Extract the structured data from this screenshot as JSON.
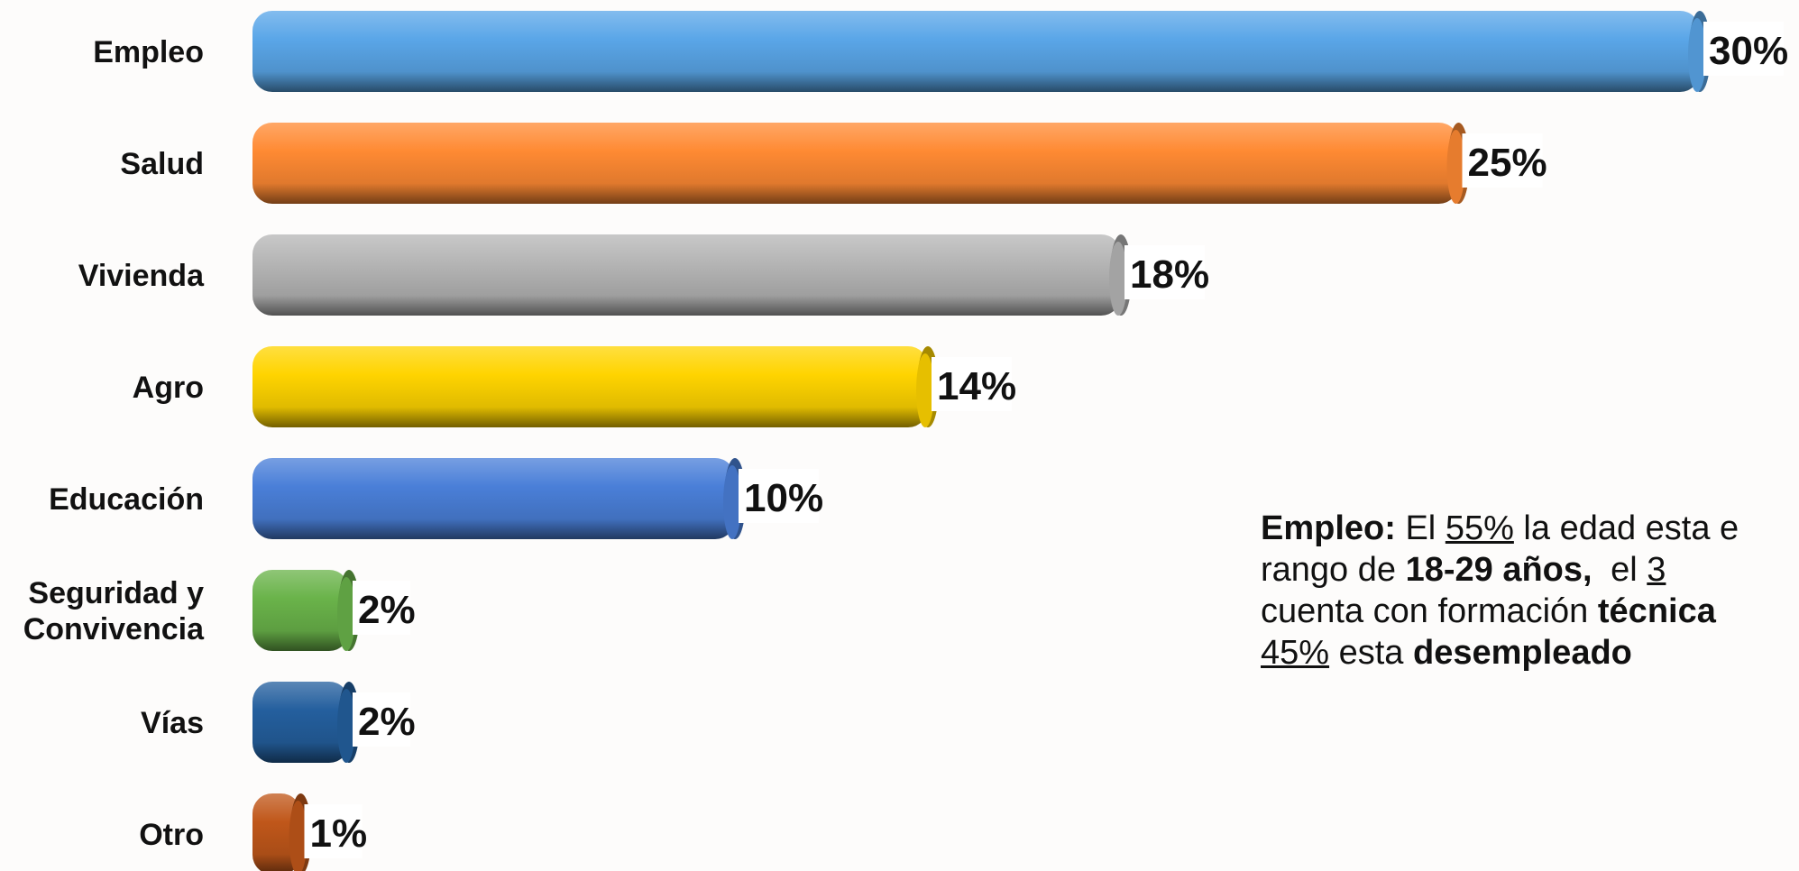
{
  "chart_data": {
    "type": "bar",
    "orientation": "horizontal",
    "categories": [
      "Empleo",
      "Salud",
      "Vivienda",
      "Agro",
      "Educación",
      "Seguridad y Convivencia",
      "Vías",
      "Otro"
    ],
    "category_lines": [
      [
        "Empleo"
      ],
      [
        "Salud"
      ],
      [
        "Vivienda"
      ],
      [
        "Agro"
      ],
      [
        "Educación"
      ],
      [
        "Seguridad y",
        "Convivencia"
      ],
      [
        "Vías"
      ],
      [
        "Otro"
      ]
    ],
    "values": [
      30,
      25,
      18,
      14,
      10,
      2,
      2,
      1
    ],
    "value_labels": [
      "30%",
      "25%",
      "18%",
      "14%",
      "10%",
      "2%",
      "2%",
      "1%"
    ],
    "colors": [
      "#5aa6e8",
      "#ff8a33",
      "#b5b5b5",
      "#ffd400",
      "#4a7fd8",
      "#6ab34a",
      "#245f9e",
      "#c0571a"
    ],
    "xlim": [
      0,
      30
    ],
    "title": "",
    "xlabel": "",
    "ylabel": "",
    "grid": false,
    "legend": "none",
    "style": "3d-cylinder"
  },
  "note": {
    "line1": {
      "b": "Empleo:",
      "t1": " El ",
      "u": "55%",
      "t2": " la edad esta e"
    },
    "line2": {
      "t1": "rango de ",
      "b": "18-29 años,",
      "t2": " el ",
      "u": "3"
    },
    "line3": {
      "t1": "cuenta con formación ",
      "b": "técnica"
    },
    "line4": {
      "u": "45%",
      "t1": " esta ",
      "b": "desempleado"
    }
  }
}
